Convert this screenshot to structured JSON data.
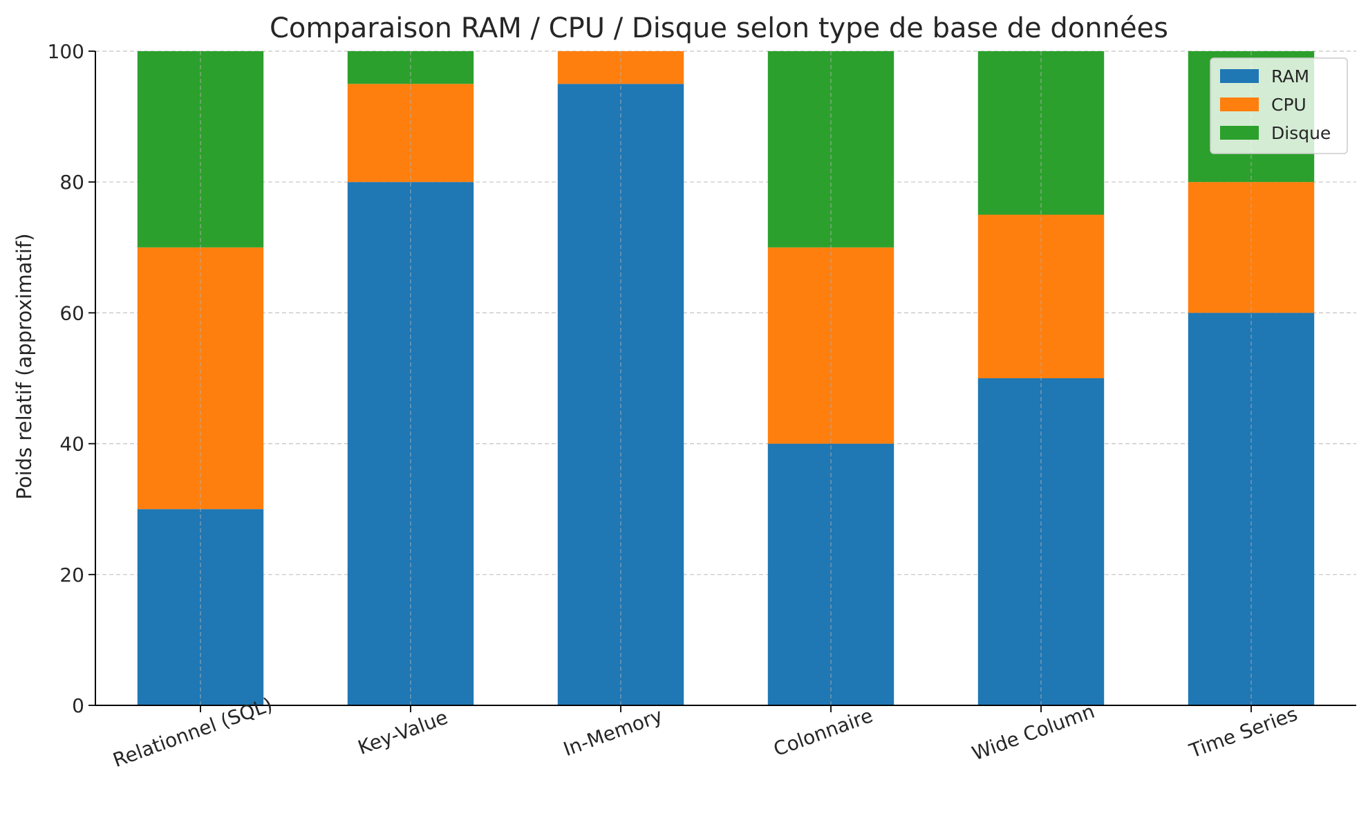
{
  "chart_data": {
    "type": "bar",
    "stacked": true,
    "title": "Comparaison RAM / CPU / Disque selon type de base de données",
    "xlabel": "",
    "ylabel": "Poids relatif (approximatif)",
    "ylim": [
      0,
      100
    ],
    "yticks": [
      "0",
      "20",
      "40",
      "60",
      "80",
      "100"
    ],
    "grid": true,
    "legend_position": "top-right",
    "categories": [
      "Relationnel (SQL)",
      "Key-Value",
      "In-Memory",
      "Colonnaire",
      "Wide Column",
      "Time Series"
    ],
    "series": [
      {
        "name": "RAM",
        "color": "#1f77b4",
        "values": [
          30,
          80,
          95,
          40,
          50,
          60
        ]
      },
      {
        "name": "CPU",
        "color": "#ff7f0e",
        "values": [
          40,
          15,
          5,
          30,
          25,
          20
        ]
      },
      {
        "name": "Disque",
        "color": "#2ca02c",
        "values": [
          30,
          5,
          0,
          30,
          25,
          20
        ]
      }
    ]
  }
}
